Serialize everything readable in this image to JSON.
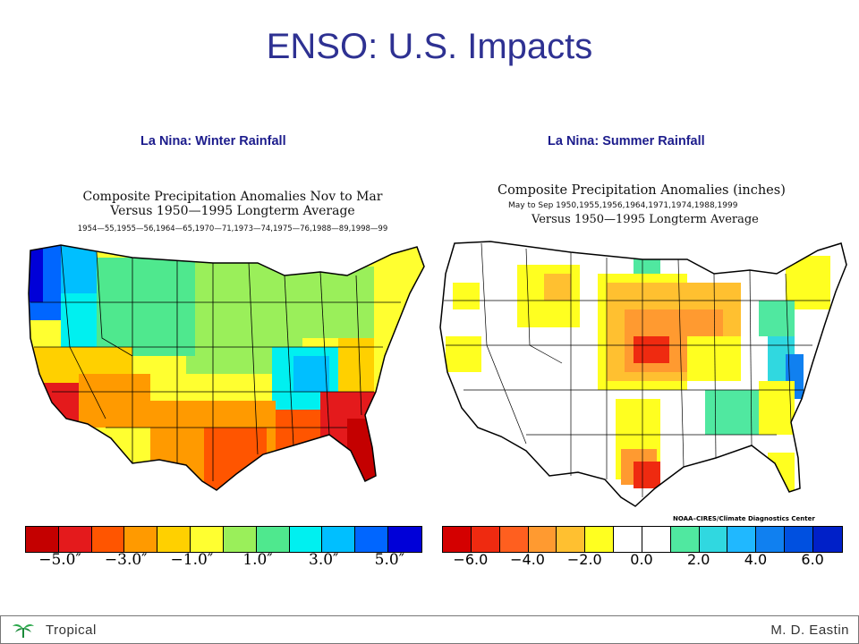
{
  "slide": {
    "title": "ENSO: U.S. Impacts"
  },
  "panels": [
    {
      "heading": "La Nina:  Winter Rainfall",
      "title_line1": "Composite Precipitation Anomalies Nov to Mar",
      "title_line2": "Versus 1950—1995 Longterm Average",
      "title_line3": "1954—55,1955—56,1964—65,1970—71,1973—74,1975—76,1988—89,1998—99",
      "legend_colors": [
        "#c40000",
        "#e41a1c",
        "#ff5500",
        "#ff9a00",
        "#ffd000",
        "#ffff30",
        "#9aef5a",
        "#4fe88e",
        "#00f0f0",
        "#00bfff",
        "#0066ff",
        "#0000d8"
      ],
      "legend_ticks": [
        "−5.0″",
        "−3.0″",
        "−1.0″",
        "1.0″",
        "3.0″",
        "5.0″"
      ]
    },
    {
      "heading": "La Nina:  Summer Rainfall",
      "title_line1": "Composite Precipitation Anomalies (inches)",
      "title_line2": "May to Sep  1950,1955,1956,1964,1971,1974,1988,1999",
      "title_line3": "Versus 1950—1995 Longterm Average",
      "credit": "NOAA–CIRES/Climate Diagnostics Center",
      "legend_colors": [
        "#d40000",
        "#ef2a10",
        "#ff5f1f",
        "#ff9a30",
        "#ffc030",
        "#ffff20",
        "#ffffff",
        "#ffffff",
        "#50e8a0",
        "#30d8e0",
        "#20b8ff",
        "#1080f0",
        "#0050e0",
        "#0020c8"
      ],
      "legend_ticks": [
        "−6.0",
        "−4.0",
        "−2.0",
        "0.0",
        "2.0",
        "4.0",
        "6.0"
      ]
    }
  ],
  "footer": {
    "left": "Tropical",
    "right": "M. D. Eastin"
  }
}
